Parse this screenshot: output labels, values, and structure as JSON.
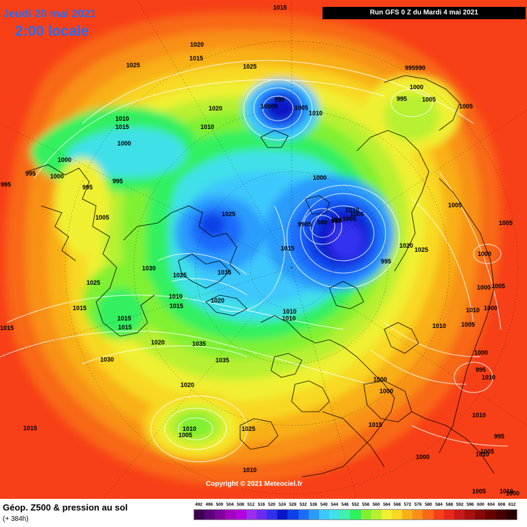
{
  "header": {
    "date": "Jeudi 20 mai 2021",
    "time": "2:00 locale",
    "run": "Run GFS 0 Z du Mardi 4 mai 2021"
  },
  "footer": {
    "copyright": "Copyright © 2021 Meteociel.fr",
    "product": "Géop. Z500 & pression au sol",
    "lead_time": "(+ 384h)"
  },
  "legend": {
    "values": [
      "492",
      "496",
      "500",
      "504",
      "508",
      "512",
      "516",
      "520",
      "524",
      "528",
      "532",
      "536",
      "540",
      "544",
      "548",
      "552",
      "556",
      "560",
      "564",
      "568",
      "572",
      "576",
      "580",
      "584",
      "588",
      "592",
      "596",
      "600",
      "604",
      "608",
      "612"
    ],
    "colors": [
      "#3d0050",
      "#5c007a",
      "#80009a",
      "#a400c0",
      "#b400e0",
      "#9c2cf0",
      "#6a2cf0",
      "#3030f0",
      "#0818c8",
      "#0c40e8",
      "#1c6cfc",
      "#2c9cfc",
      "#3cc8fc",
      "#40e0e8",
      "#40f0b0",
      "#30f060",
      "#80f030",
      "#b8f030",
      "#f0f030",
      "#f8d820",
      "#f8b018",
      "#f89018",
      "#f86818",
      "#f84018",
      "#e82818",
      "#c81818",
      "#a81010",
      "#880808",
      "#680000",
      "#480000",
      "#280000"
    ]
  },
  "pressure_labels": [
    "1015",
    "1020",
    "1015",
    "1025",
    "1025",
    "995990",
    "1000",
    "995",
    "1005",
    "1005",
    "1020",
    "990",
    "10005",
    "1005",
    "1010",
    "1010",
    "1015",
    "1010",
    "1010",
    "1000",
    "995",
    "995",
    "1000",
    "995",
    "995",
    "1000",
    "1005",
    "1005",
    "995",
    "1000",
    "1010",
    "1005",
    "1000",
    "1025",
    "9905",
    "980",
    "995",
    "1005",
    "1020",
    "1025",
    "1015",
    "1000",
    "1005",
    "995",
    "1030",
    "1025",
    "1025",
    "1015",
    "1015",
    "1010",
    "1015",
    "1035",
    "1035",
    "1020",
    "1015",
    "1010",
    "1010",
    "1015",
    "1020",
    "1035",
    "1030",
    "1020",
    "1025",
    "1015",
    "1010",
    "1005",
    "1015",
    "1000",
    "1000",
    "1000",
    "1005",
    "1000",
    "1010",
    "1000",
    "995",
    "1010",
    "1010",
    "1005",
    "995",
    "1000",
    "1005",
    "1010",
    "1010",
    "1010",
    "1000",
    "1005"
  ]
}
